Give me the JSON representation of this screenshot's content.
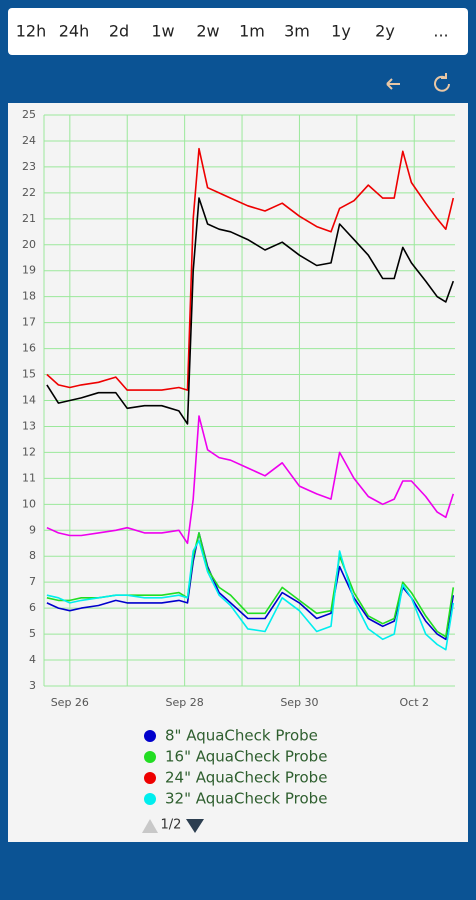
{
  "toolbar": {
    "ranges": [
      "12h",
      "24h",
      "2d",
      "1w",
      "2w",
      "1m",
      "3m",
      "1y",
      "2y",
      "..."
    ]
  },
  "chart_data": {
    "type": "line",
    "x": [
      25.6,
      25.8,
      26.0,
      26.2,
      26.5,
      26.8,
      27.0,
      27.3,
      27.6,
      27.9,
      28.05,
      28.15,
      28.25,
      28.4,
      28.6,
      28.8,
      29.1,
      29.4,
      29.7,
      30.0,
      30.3,
      30.55,
      30.7,
      30.95,
      31.2,
      31.45,
      31.65,
      31.8,
      31.95,
      32.2,
      32.4,
      32.55,
      32.68
    ],
    "xlim": [
      25.55,
      32.71
    ],
    "xticks": [
      {
        "value": 26,
        "label": "Sep 26"
      },
      {
        "value": 28,
        "label": "Sep 28"
      },
      {
        "value": 30,
        "label": "Sep 30"
      },
      {
        "value": 32,
        "label": "Oct 2"
      }
    ],
    "xminor": [
      27,
      29,
      31
    ],
    "ylim": [
      3,
      25
    ],
    "yticks": [
      3,
      4,
      5,
      6,
      7,
      8,
      9,
      10,
      11,
      12,
      13,
      14,
      15,
      16,
      17,
      18,
      19,
      20,
      21,
      22,
      23,
      24,
      25
    ],
    "grid": true,
    "legend": "bottom",
    "series": [
      {
        "name": "8\" AquaCheck Probe",
        "color": "#0000cc",
        "values": [
          6.2,
          6.0,
          5.9,
          6.0,
          6.1,
          6.3,
          6.2,
          6.2,
          6.2,
          6.3,
          6.2,
          7.8,
          8.9,
          7.6,
          6.6,
          6.2,
          5.6,
          5.6,
          6.6,
          6.2,
          5.6,
          5.8,
          7.6,
          6.4,
          5.6,
          5.3,
          5.5,
          6.8,
          6.4,
          5.5,
          5.0,
          4.8,
          6.5
        ]
      },
      {
        "name": "16\" AquaCheck Probe",
        "color": "#22dd22",
        "values": [
          6.4,
          6.3,
          6.3,
          6.4,
          6.4,
          6.5,
          6.5,
          6.5,
          6.5,
          6.6,
          6.4,
          8.0,
          8.9,
          7.5,
          6.8,
          6.5,
          5.8,
          5.8,
          6.8,
          6.3,
          5.8,
          5.9,
          8.0,
          6.6,
          5.7,
          5.4,
          5.6,
          7.0,
          6.6,
          5.7,
          5.1,
          4.9,
          6.8
        ]
      },
      {
        "name": "24\" AquaCheck Probe",
        "color": "#ee0000",
        "values": [
          15.0,
          14.6,
          14.5,
          14.6,
          14.7,
          14.9,
          14.4,
          14.4,
          14.4,
          14.5,
          14.4,
          21.0,
          23.7,
          22.2,
          22.0,
          21.8,
          21.5,
          21.3,
          21.6,
          21.1,
          20.7,
          20.5,
          21.4,
          21.7,
          22.3,
          21.8,
          21.8,
          23.6,
          22.4,
          21.6,
          21.0,
          20.6,
          21.8
        ]
      },
      {
        "name": "32\" AquaCheck Probe",
        "color": "#00eeee",
        "values": [
          6.5,
          6.4,
          6.2,
          6.3,
          6.4,
          6.5,
          6.5,
          6.4,
          6.4,
          6.5,
          6.4,
          8.2,
          8.6,
          7.4,
          6.5,
          6.1,
          5.2,
          5.1,
          6.4,
          5.9,
          5.1,
          5.3,
          8.2,
          6.3,
          5.2,
          4.8,
          5.0,
          6.9,
          6.4,
          5.0,
          4.6,
          4.4,
          6.2
        ]
      },
      {
        "color": "#000000",
        "values": [
          14.6,
          13.9,
          14.0,
          14.1,
          14.3,
          14.3,
          13.7,
          13.8,
          13.8,
          13.6,
          13.1,
          19.0,
          21.8,
          20.8,
          20.6,
          20.5,
          20.2,
          19.8,
          20.1,
          19.6,
          19.2,
          19.3,
          20.8,
          20.2,
          19.6,
          18.7,
          18.7,
          19.9,
          19.3,
          18.6,
          18.0,
          17.8,
          18.6
        ]
      },
      {
        "color": "#ee00ee",
        "values": [
          9.1,
          8.9,
          8.8,
          8.8,
          8.9,
          9.0,
          9.1,
          8.9,
          8.9,
          9.0,
          8.5,
          10.2,
          13.4,
          12.1,
          11.8,
          11.7,
          11.4,
          11.1,
          11.6,
          10.7,
          10.4,
          10.2,
          12.0,
          11.0,
          10.3,
          10.0,
          10.2,
          10.9,
          10.9,
          10.3,
          9.7,
          9.5,
          10.4
        ]
      }
    ]
  },
  "pager": "1/2"
}
